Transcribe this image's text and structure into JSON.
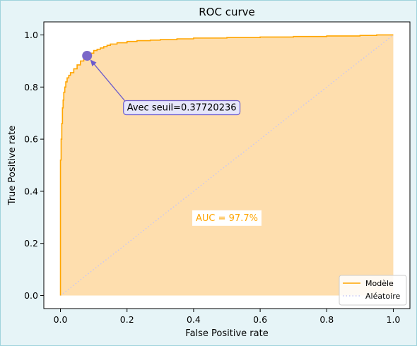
{
  "chart_data": {
    "type": "area",
    "title": "ROC curve",
    "xlabel": "False Positive rate",
    "ylabel": "True Positive rate",
    "xlim": [
      -0.05,
      1.05
    ],
    "ylim": [
      -0.05,
      1.05
    ],
    "xticks": [
      "0.0",
      "0.2",
      "0.4",
      "0.6",
      "0.8",
      "1.0"
    ],
    "yticks": [
      "0.0",
      "0.2",
      "0.4",
      "0.6",
      "0.8",
      "1.0"
    ],
    "grid": false,
    "series": [
      {
        "name": "Modèle",
        "style": "solid",
        "color": "#ffa500",
        "fill": "#fedeae",
        "x": [
          0.0,
          0.0,
          0.002,
          0.004,
          0.006,
          0.008,
          0.01,
          0.013,
          0.016,
          0.02,
          0.025,
          0.03,
          0.04,
          0.05,
          0.06,
          0.07,
          0.08,
          0.09,
          0.1,
          0.11,
          0.12,
          0.13,
          0.14,
          0.15,
          0.17,
          0.2,
          0.23,
          0.27,
          0.3,
          0.35,
          0.4,
          0.5,
          0.6,
          0.7,
          0.8,
          0.9,
          0.95,
          1.0
        ],
        "y": [
          0.0,
          0.52,
          0.6,
          0.66,
          0.72,
          0.75,
          0.78,
          0.8,
          0.82,
          0.835,
          0.845,
          0.855,
          0.87,
          0.885,
          0.9,
          0.91,
          0.92,
          0.93,
          0.94,
          0.945,
          0.95,
          0.955,
          0.96,
          0.965,
          0.97,
          0.975,
          0.978,
          0.98,
          0.982,
          0.985,
          0.988,
          0.99,
          0.992,
          0.994,
          0.996,
          0.998,
          1.0,
          1.0
        ]
      },
      {
        "name": "Aléatoire",
        "style": "dotted",
        "color": "#c6c6f5",
        "x": [
          0,
          1
        ],
        "y": [
          0,
          1
        ]
      }
    ],
    "annotation": {
      "text": "Avec seuil=0.37720236",
      "point": [
        0.08,
        0.92
      ],
      "point_color": "#7b68c9",
      "box_fill": "#e6e6fa",
      "box_edge": "#6a5acd",
      "text_at": [
        0.2,
        0.71
      ]
    },
    "auc_label": {
      "text": "AUC = 97.7%",
      "color": "#ffa500",
      "at": [
        0.5,
        0.3
      ]
    },
    "legend": {
      "position": "bottom-right",
      "entries": [
        "Modèle",
        "Aléatoire"
      ]
    }
  }
}
